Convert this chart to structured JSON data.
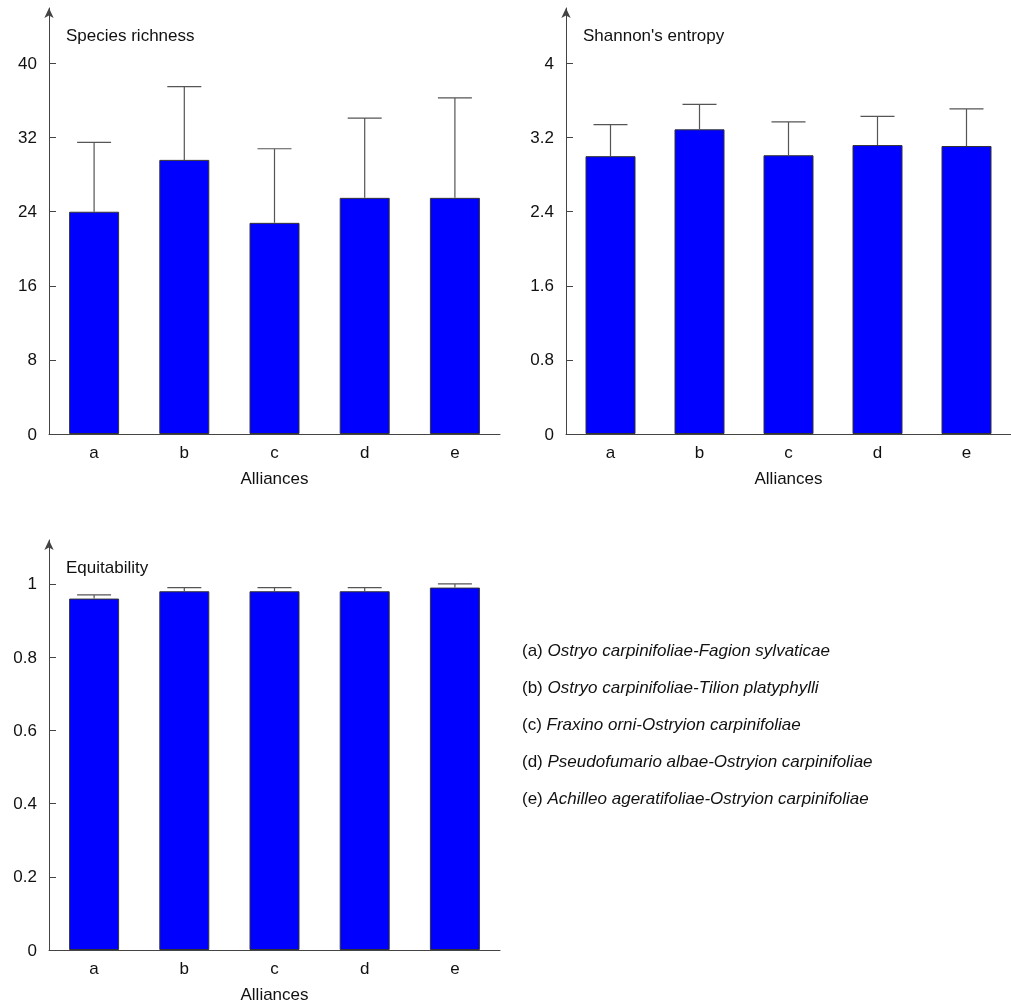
{
  "chart_data": [
    {
      "type": "bar",
      "ylabel": "Species richness",
      "xlabel": "Alliances",
      "categories": [
        "a",
        "b",
        "c",
        "d",
        "e"
      ],
      "values": [
        24,
        29.6,
        22.8,
        25.5,
        25.5
      ],
      "errors": [
        [
          24,
          31.5
        ],
        [
          29.6,
          37.5
        ],
        [
          22.8,
          30.8
        ],
        [
          25.5,
          34.1
        ],
        [
          25.5,
          36.3
        ]
      ],
      "color": "#0000ff",
      "ylim": [
        0,
        46
      ],
      "yticks": [
        0,
        8,
        16,
        24,
        32,
        40
      ]
    },
    {
      "type": "bar",
      "ylabel": "Shannon's entropy",
      "xlabel": "Alliances",
      "categories": [
        "a",
        "b",
        "c",
        "d",
        "e"
      ],
      "values": [
        3,
        3.29,
        3.01,
        3.12,
        3.11
      ],
      "errors": [
        [
          3,
          3.34
        ],
        [
          3.29,
          3.56
        ],
        [
          3.01,
          3.37
        ],
        [
          3.12,
          3.43
        ],
        [
          3.11,
          3.51
        ]
      ],
      "color": "#0000ff",
      "ylim": [
        0,
        4.6
      ],
      "yticks": [
        0,
        0.8,
        1.6,
        2.4,
        3.2,
        4
      ]
    },
    {
      "type": "bar",
      "ylabel": "Equitability",
      "xlabel": "Alliances",
      "categories": [
        "a",
        "b",
        "c",
        "d",
        "e"
      ],
      "values": [
        0.96,
        0.98,
        0.98,
        0.98,
        0.99
      ],
      "errors": [
        [
          0.96,
          0.97
        ],
        [
          0.98,
          0.99
        ],
        [
          0.98,
          0.99
        ],
        [
          0.98,
          0.99
        ],
        [
          0.99,
          1
        ]
      ],
      "color": "#0000ff",
      "ylim": [
        0,
        1.12
      ],
      "yticks": [
        0,
        0.2,
        0.4,
        0.6,
        0.8,
        1
      ]
    },
    {
      "type": "other",
      "annotations": [
        "(a) Ostryo carpinifoliae-Fagion sylvaticae",
        "(b) Ostryo carpinifoliae-Tilion platyphylli",
        "(c) Fraxino orni-Ostryion carpinifoliae",
        "(d) Pseudofumario albae-Ostryion carpinifoliae",
        "(e) Achilleo ageratifoliae-Ostryion carpinifoliae"
      ]
    }
  ]
}
